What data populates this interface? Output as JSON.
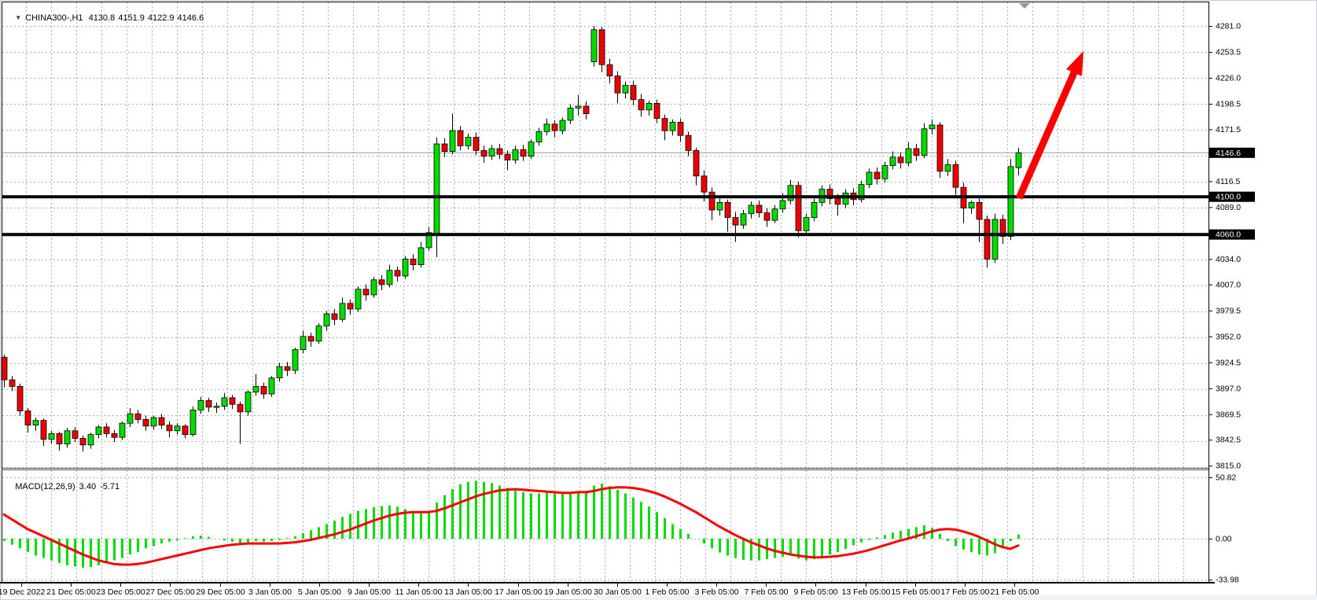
{
  "title": {
    "dropdown_icon": "▼",
    "symbol_timeframe": "CHINA300-,H1",
    "open": "4130.8",
    "high": "4151.9",
    "low": "4122.9",
    "close": "4146.6"
  },
  "indicator": {
    "name": "MACD(12,26,9)",
    "main_value": "3.40",
    "signal_value": "-5.71"
  },
  "colors": {
    "background": "#ffffff",
    "border": "#000000",
    "window_frame": "#c6cdd4",
    "grid": "#a7b1bc",
    "bull": "#00dc00",
    "bear": "#ee0000",
    "wick": "#000000",
    "macd_histogram": "#00dd00",
    "macd_signal": "#ff0000",
    "support_line": "#000000",
    "price_line": "#9a9a9a",
    "arrow": "#ff0000",
    "shift_marker": "#8e99a3",
    "tag_bg": "#000000",
    "tag_text": "#ffffff",
    "axis_text": "#000000"
  },
  "chart_data": {
    "type": "candlestick",
    "symbol": "CHINA300-",
    "timeframe": "H1",
    "last_bar": {
      "open": 4130.8,
      "high": 4151.9,
      "low": 4122.9,
      "close": 4146.6
    },
    "price_axis_ticks": [
      4281.0,
      4253.5,
      4226.0,
      4198.5,
      4171.5,
      4116.5,
      4089.0,
      4034.0,
      4007.0,
      3979.5,
      3952.0,
      3924.5,
      3897.0,
      3869.5,
      3842.5,
      3815.0
    ],
    "price_grid_top": 4281.0,
    "price_grid_step": 27.5,
    "price_grid_count": 18,
    "price_tags": [
      4146.6,
      4100.0,
      4060.0
    ],
    "current_price": 4146.6,
    "support_lines": [
      4100.0,
      4060.0
    ],
    "ylim": [
      3812,
      4306
    ],
    "time_labels": [
      "19 Dec 2022",
      "21 Dec 05:00",
      "23 Dec 05:00",
      "27 Dec 05:00",
      "29 Dec 05:00",
      "3 Jan 05:00",
      "5 Jan 05:00",
      "9 Jan 05:00",
      "11 Jan 05:00",
      "13 Jan 05:00",
      "17 Jan 05:00",
      "19 Jan 05:00",
      "30 Jan 05:00",
      "1 Feb 05:00",
      "3 Feb 05:00",
      "7 Feb 05:00",
      "9 Feb 05:00",
      "13 Feb 05:00",
      "15 Feb 05:00",
      "17 Feb 05:00",
      "21 Feb 05:00"
    ],
    "candles": [
      [
        3930,
        3933,
        3898,
        3906
      ],
      [
        3906,
        3910,
        3894,
        3899
      ],
      [
        3899,
        3902,
        3868,
        3873
      ],
      [
        3873,
        3876,
        3850,
        3858
      ],
      [
        3858,
        3866,
        3852,
        3863
      ],
      [
        3863,
        3865,
        3836,
        3843
      ],
      [
        3843,
        3852,
        3838,
        3849
      ],
      [
        3849,
        3851,
        3831,
        3838
      ],
      [
        3838,
        3855,
        3834,
        3852
      ],
      [
        3852,
        3856,
        3840,
        3844
      ],
      [
        3844,
        3847,
        3830,
        3837
      ],
      [
        3837,
        3850,
        3833,
        3848
      ],
      [
        3848,
        3858,
        3844,
        3856
      ],
      [
        3856,
        3860,
        3845,
        3849
      ],
      [
        3849,
        3853,
        3840,
        3845
      ],
      [
        3845,
        3862,
        3842,
        3860
      ],
      [
        3860,
        3876,
        3856,
        3870
      ],
      [
        3870,
        3874,
        3860,
        3864
      ],
      [
        3864,
        3868,
        3852,
        3857
      ],
      [
        3857,
        3868,
        3853,
        3866
      ],
      [
        3866,
        3870,
        3854,
        3858
      ],
      [
        3858,
        3862,
        3845,
        3852
      ],
      [
        3852,
        3860,
        3848,
        3857
      ],
      [
        3857,
        3859,
        3844,
        3848
      ],
      [
        3848,
        3878,
        3846,
        3874
      ],
      [
        3874,
        3888,
        3870,
        3884
      ],
      [
        3884,
        3887,
        3872,
        3877
      ],
      [
        3877,
        3882,
        3871,
        3878
      ],
      [
        3878,
        3892,
        3874,
        3887
      ],
      [
        3887,
        3890,
        3875,
        3880
      ],
      [
        3880,
        3883,
        3838,
        3872
      ],
      [
        3872,
        3895,
        3868,
        3893
      ],
      [
        3893,
        3912,
        3889,
        3899
      ],
      [
        3899,
        3903,
        3886,
        3891
      ],
      [
        3891,
        3910,
        3888,
        3908
      ],
      [
        3908,
        3924,
        3904,
        3920
      ],
      [
        3920,
        3925,
        3910,
        3916
      ],
      [
        3916,
        3940,
        3912,
        3938
      ],
      [
        3938,
        3958,
        3934,
        3952
      ],
      [
        3952,
        3956,
        3941,
        3947
      ],
      [
        3947,
        3966,
        3944,
        3963
      ],
      [
        3963,
        3979,
        3958,
        3976
      ],
      [
        3976,
        3981,
        3964,
        3970
      ],
      [
        3970,
        3993,
        3967,
        3987
      ],
      [
        3987,
        3991,
        3975,
        3981
      ],
      [
        3981,
        4005,
        3978,
        4002
      ],
      [
        4002,
        4007,
        3990,
        3996
      ],
      [
        3996,
        4015,
        3993,
        4012
      ],
      [
        4012,
        4017,
        4001,
        4007
      ],
      [
        4007,
        4028,
        4004,
        4022
      ],
      [
        4022,
        4026,
        4010,
        4016
      ],
      [
        4016,
        4037,
        4013,
        4034
      ],
      [
        4034,
        4039,
        4022,
        4028
      ],
      [
        4028,
        4052,
        4025,
        4046
      ],
      [
        4046,
        4068,
        4043,
        4062
      ],
      [
        4060,
        4163,
        4036,
        4156
      ],
      [
        4156,
        4162,
        4142,
        4148
      ],
      [
        4148,
        4188,
        4145,
        4170
      ],
      [
        4170,
        4175,
        4149,
        4154
      ],
      [
        4154,
        4167,
        4150,
        4163
      ],
      [
        4163,
        4168,
        4144,
        4149
      ],
      [
        4149,
        4154,
        4136,
        4143
      ],
      [
        4143,
        4155,
        4139,
        4151
      ],
      [
        4151,
        4156,
        4140,
        4145
      ],
      [
        4145,
        4149,
        4128,
        4139
      ],
      [
        4139,
        4154,
        4135,
        4150
      ],
      [
        4150,
        4155,
        4138,
        4143
      ],
      [
        4143,
        4161,
        4140,
        4158
      ],
      [
        4158,
        4173,
        4154,
        4169
      ],
      [
        4169,
        4183,
        4165,
        4177
      ],
      [
        4177,
        4181,
        4163,
        4170
      ],
      [
        4170,
        4184,
        4166,
        4181
      ],
      [
        4181,
        4198,
        4177,
        4194
      ],
      [
        4194,
        4208,
        4186,
        4196
      ],
      [
        4196,
        4201,
        4182,
        4188
      ],
      [
        4243,
        4281,
        4238,
        4277
      ],
      [
        4277,
        4280,
        4232,
        4240
      ],
      [
        4240,
        4246,
        4220,
        4228
      ],
      [
        4228,
        4233,
        4199,
        4210
      ],
      [
        4210,
        4222,
        4204,
        4218
      ],
      [
        4218,
        4223,
        4197,
        4203
      ],
      [
        4203,
        4209,
        4185,
        4192
      ],
      [
        4192,
        4202,
        4186,
        4199
      ],
      [
        4199,
        4203,
        4178,
        4183
      ],
      [
        4183,
        4187,
        4160,
        4170
      ],
      [
        4170,
        4182,
        4165,
        4179
      ],
      [
        4179,
        4183,
        4158,
        4165
      ],
      [
        4165,
        4169,
        4143,
        4149
      ],
      [
        4149,
        4152,
        4112,
        4122
      ],
      [
        4122,
        4128,
        4095,
        4105
      ],
      [
        4105,
        4110,
        4075,
        4086
      ],
      [
        4086,
        4098,
        4080,
        4094
      ],
      [
        4094,
        4097,
        4063,
        4078
      ],
      [
        4078,
        4084,
        4052,
        4070
      ],
      [
        4070,
        4086,
        4066,
        4082
      ],
      [
        4082,
        4095,
        4077,
        4091
      ],
      [
        4091,
        4096,
        4078,
        4083
      ],
      [
        4083,
        4088,
        4068,
        4075
      ],
      [
        4075,
        4091,
        4072,
        4087
      ],
      [
        4087,
        4104,
        4083,
        4096
      ],
      [
        4096,
        4118,
        4092,
        4112
      ],
      [
        4112,
        4116,
        4057,
        4064
      ],
      [
        4064,
        4082,
        4060,
        4078
      ],
      [
        4078,
        4098,
        4074,
        4094
      ],
      [
        4094,
        4112,
        4090,
        4108
      ],
      [
        4108,
        4113,
        4092,
        4098
      ],
      [
        4098,
        4103,
        4080,
        4092
      ],
      [
        4092,
        4108,
        4088,
        4104
      ],
      [
        4104,
        4109,
        4091,
        4097
      ],
      [
        4097,
        4117,
        4094,
        4113
      ],
      [
        4113,
        4130,
        4109,
        4126
      ],
      [
        4126,
        4131,
        4113,
        4119
      ],
      [
        4119,
        4137,
        4115,
        4133
      ],
      [
        4133,
        4148,
        4129,
        4142
      ],
      [
        4142,
        4147,
        4130,
        4136
      ],
      [
        4136,
        4158,
        4132,
        4151
      ],
      [
        4151,
        4156,
        4138,
        4144
      ],
      [
        4144,
        4178,
        4141,
        4172
      ],
      [
        4172,
        4182,
        4166,
        4176
      ],
      [
        4176,
        4179,
        4120,
        4127
      ],
      [
        4127,
        4140,
        4122,
        4134
      ],
      [
        4134,
        4138,
        4102,
        4110
      ],
      [
        4110,
        4115,
        4072,
        4088
      ],
      [
        4088,
        4096,
        4082,
        4094
      ],
      [
        4094,
        4098,
        4052,
        4076
      ],
      [
        4076,
        4080,
        4025,
        4034
      ],
      [
        4034,
        4082,
        4030,
        4076
      ],
      [
        4076,
        4081,
        4050,
        4058
      ],
      [
        4058,
        4140,
        4054,
        4132
      ],
      [
        4130.8,
        4151.9,
        4122.9,
        4146.6
      ]
    ],
    "macd": {
      "name": "MACD(12,26,9)",
      "axis_labels": [
        50.82,
        0.0,
        -33.98
      ],
      "last_main": 3.4,
      "last_signal": -5.71,
      "histogram": [
        -2,
        -5,
        -8,
        -11,
        -14,
        -16,
        -18,
        -20,
        -22,
        -23,
        -24,
        -23.5,
        -22,
        -20,
        -18,
        -16,
        -13,
        -11,
        -8,
        -6,
        -4,
        -2.5,
        -1.5,
        0.5,
        2,
        2.5,
        1.5,
        0,
        -1.5,
        -2.5,
        -3.5,
        -3,
        -2,
        -2.5,
        -2,
        -1,
        0.5,
        2,
        4.5,
        7,
        9.5,
        12,
        15,
        18,
        20.5,
        23,
        24.5,
        26,
        27,
        27.5,
        26.5,
        24.5,
        22.5,
        21.5,
        22,
        30,
        36,
        41,
        45,
        47,
        48,
        47,
        46,
        44,
        42,
        40,
        38.5,
        37.5,
        37.5,
        38,
        38.5,
        37.5,
        38,
        39,
        38.5,
        44,
        45.5,
        43.5,
        40.5,
        37.5,
        34,
        30.5,
        26.5,
        22,
        17,
        12,
        8,
        4,
        0,
        -4,
        -8,
        -11.5,
        -14,
        -16,
        -17.5,
        -18,
        -18,
        -17,
        -16,
        -15,
        -14,
        -16.5,
        -18,
        -17,
        -15,
        -13,
        -11,
        -8.5,
        -5.5,
        -3,
        -1,
        1,
        3,
        5,
        6.5,
        8,
        9.5,
        11,
        9,
        4,
        -2,
        -6,
        -9,
        -11,
        -13,
        -14,
        -12,
        -8,
        -2,
        3.4
      ],
      "signal": [
        20,
        16,
        12,
        8,
        5,
        2,
        -1,
        -4,
        -7,
        -10,
        -13,
        -15.5,
        -18,
        -19.5,
        -21,
        -21.5,
        -21.5,
        -21,
        -20,
        -18.5,
        -17,
        -15.5,
        -14,
        -12.5,
        -11,
        -9.5,
        -8,
        -7,
        -6,
        -5,
        -4.5,
        -4,
        -4,
        -4,
        -4,
        -4,
        -3.5,
        -3,
        -2,
        -1,
        0.5,
        2,
        3.5,
        5.5,
        7.5,
        10,
        12.5,
        15,
        17,
        19,
        20.5,
        21.5,
        22,
        22,
        22,
        23,
        25,
        27.5,
        30,
        32.5,
        35,
        37,
        38.5,
        40,
        40.5,
        41,
        40.5,
        40,
        39.5,
        39,
        38.5,
        38,
        38,
        38.5,
        38.5,
        39.5,
        41,
        42,
        42.5,
        42.5,
        42,
        41,
        39.5,
        37.5,
        35,
        32,
        29,
        25.5,
        22,
        18,
        14,
        10,
        6.5,
        3,
        0,
        -3,
        -5.5,
        -8,
        -10,
        -11.5,
        -13,
        -14,
        -15,
        -15.5,
        -15.5,
        -15,
        -14.5,
        -13.5,
        -12.5,
        -11,
        -9.5,
        -7.5,
        -5.5,
        -3.5,
        -1.5,
        0,
        2,
        4,
        6,
        7.5,
        8,
        7.5,
        6,
        4,
        1.5,
        -1.5,
        -4.5,
        -7,
        -8.5,
        -5.71
      ]
    },
    "arrow": {
      "tail": [
        1296,
        252
      ],
      "tip": [
        1378,
        65
      ]
    },
    "shift_marker_x": 1303
  }
}
